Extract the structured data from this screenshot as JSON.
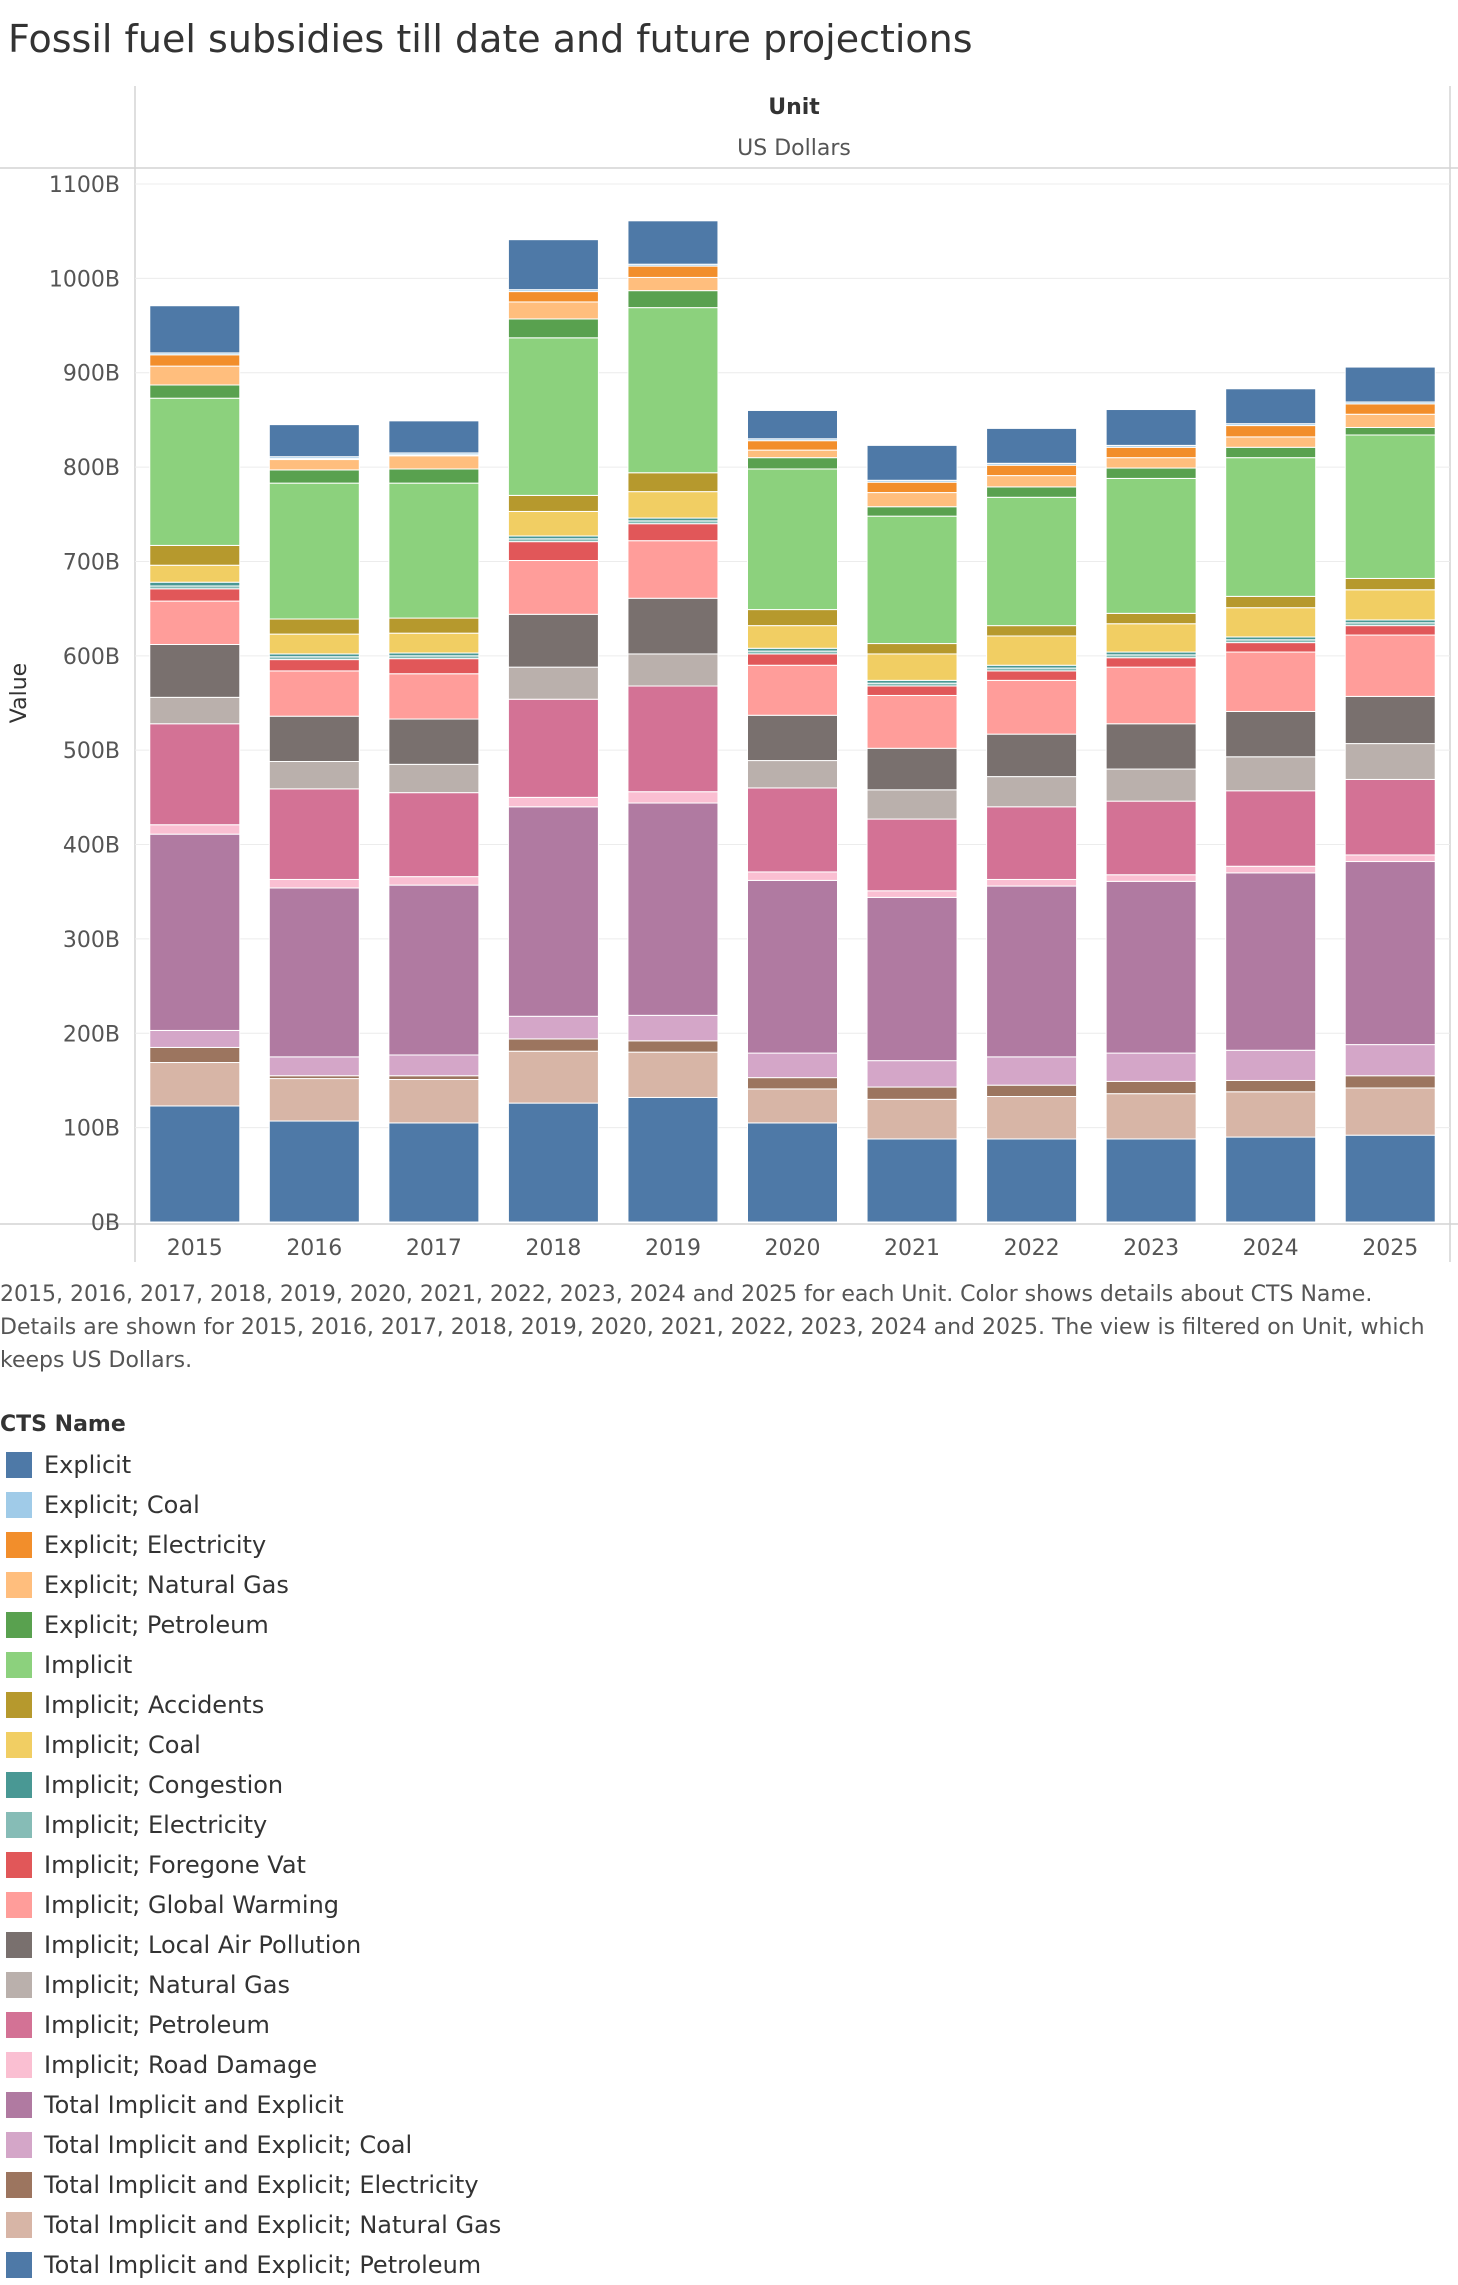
{
  "page": {
    "title": "Fossil fuel subsidies till date and future projections"
  },
  "header": {
    "column_label": "Unit",
    "column_value": "US Dollars"
  },
  "caption": "2015, 2016, 2017, 2018, 2019, 2020, 2021, 2022, 2023, 2024 and 2025 for each Unit.  Color shows details about CTS Name. Details are shown for 2015, 2016, 2017, 2018, 2019, 2020, 2021, 2022, 2023, 2024 and 2025. The view is filtered on Unit, which keeps US Dollars.",
  "legend": {
    "title": "CTS Name"
  },
  "chart_data": {
    "type": "bar",
    "stacked": true,
    "title": "Fossil fuel subsidies till date and future projections",
    "ylabel": "Value",
    "xlabel": "",
    "ylim": [
      0,
      1100
    ],
    "y_ticks": [
      0,
      100,
      200,
      300,
      400,
      500,
      600,
      700,
      800,
      900,
      1000,
      1100
    ],
    "y_tick_labels": [
      "0B",
      "100B",
      "200B",
      "300B",
      "400B",
      "500B",
      "600B",
      "700B",
      "800B",
      "900B",
      "1000B",
      "1100B"
    ],
    "y_unit": "B (US Dollars)",
    "grid": true,
    "legend_position": "bottom",
    "categories": [
      "2015",
      "2016",
      "2017",
      "2018",
      "2019",
      "2020",
      "2021",
      "2022",
      "2023",
      "2024",
      "2025"
    ],
    "series": [
      {
        "name": "Total Implicit and Explicit; Petroleum",
        "color": "#4e79a7",
        "values": [
          123,
          107,
          105,
          126,
          132,
          105,
          88,
          88,
          88,
          90,
          92
        ]
      },
      {
        "name": "Total Implicit and Explicit; Natural Gas",
        "color": "#d7b5a6",
        "values": [
          46,
          45,
          46,
          55,
          48,
          36,
          42,
          45,
          48,
          48,
          50
        ]
      },
      {
        "name": "Total Implicit and Explicit; Electricity",
        "color": "#9c755f",
        "values": [
          16,
          3,
          4,
          13,
          12,
          12,
          13,
          12,
          13,
          12,
          13
        ]
      },
      {
        "name": "Total Implicit and Explicit; Coal",
        "color": "#d4a6c8",
        "values": [
          18,
          20,
          22,
          24,
          27,
          26,
          28,
          30,
          30,
          32,
          33
        ]
      },
      {
        "name": "Total Implicit and Explicit",
        "color": "#b07aa1",
        "values": [
          208,
          179,
          180,
          222,
          225,
          183,
          173,
          181,
          182,
          188,
          194
        ]
      },
      {
        "name": "Implicit; Road Damage",
        "color": "#fabfd2",
        "values": [
          10,
          9,
          9,
          10,
          12,
          9,
          7,
          7,
          7,
          7,
          7
        ]
      },
      {
        "name": "Implicit; Petroleum",
        "color": "#d37295",
        "values": [
          107,
          96,
          89,
          104,
          112,
          89,
          76,
          77,
          78,
          80,
          80
        ]
      },
      {
        "name": "Implicit; Natural Gas",
        "color": "#bab0ac",
        "values": [
          28,
          29,
          30,
          34,
          34,
          29,
          31,
          32,
          34,
          36,
          38
        ]
      },
      {
        "name": "Implicit; Local Air Pollution",
        "color": "#79706e",
        "values": [
          56,
          48,
          48,
          56,
          59,
          48,
          44,
          45,
          48,
          48,
          50
        ]
      },
      {
        "name": "Implicit; Global Warming",
        "color": "#ff9d9a",
        "values": [
          46,
          48,
          48,
          57,
          61,
          53,
          56,
          57,
          60,
          63,
          65
        ]
      },
      {
        "name": "Implicit; Foregone Vat",
        "color": "#e15759",
        "values": [
          13,
          12,
          16,
          20,
          18,
          12,
          10,
          10,
          10,
          10,
          10
        ]
      },
      {
        "name": "Implicit; Electricity",
        "color": "#86bcb6",
        "values": [
          3,
          3,
          3,
          3,
          3,
          3,
          3,
          3,
          3,
          3,
          3
        ]
      },
      {
        "name": "Implicit; Congestion",
        "color": "#499894",
        "values": [
          4,
          3,
          3,
          3,
          3,
          3,
          3,
          3,
          3,
          3,
          3
        ]
      },
      {
        "name": "Implicit; Coal",
        "color": "#f1ce63",
        "values": [
          18,
          21,
          21,
          26,
          28,
          24,
          28,
          31,
          30,
          31,
          32
        ]
      },
      {
        "name": "Implicit; Accidents",
        "color": "#b6992d",
        "values": [
          21,
          16,
          16,
          17,
          20,
          17,
          11,
          11,
          11,
          12,
          12
        ]
      },
      {
        "name": "Implicit",
        "color": "#8cd17d",
        "values": [
          156,
          144,
          143,
          167,
          175,
          149,
          135,
          136,
          143,
          147,
          152
        ]
      },
      {
        "name": "Explicit; Petroleum",
        "color": "#59a14f",
        "values": [
          14,
          14,
          15,
          20,
          18,
          12,
          10,
          11,
          11,
          11,
          8
        ]
      },
      {
        "name": "Explicit; Natural Gas",
        "color": "#ffbe7d",
        "values": [
          20,
          11,
          14,
          18,
          14,
          8,
          15,
          12,
          11,
          11,
          14
        ]
      },
      {
        "name": "Explicit; Electricity",
        "color": "#f28e2b",
        "values": [
          12,
          1,
          1,
          11,
          12,
          10,
          11,
          11,
          11,
          12,
          11
        ]
      },
      {
        "name": "Explicit; Coal",
        "color": "#a0cbe8",
        "values": [
          2,
          2,
          2,
          2,
          2,
          2,
          2,
          2,
          2,
          2,
          2
        ]
      },
      {
        "name": "Explicit",
        "color": "#4e79a7",
        "values": [
          50,
          34,
          34,
          53,
          46,
          30,
          37,
          37,
          38,
          37,
          37
        ]
      }
    ],
    "legend_order": [
      "Explicit",
      "Explicit; Coal",
      "Explicit; Electricity",
      "Explicit; Natural Gas",
      "Explicit; Petroleum",
      "Implicit",
      "Implicit; Accidents",
      "Implicit; Coal",
      "Implicit; Congestion",
      "Implicit; Electricity",
      "Implicit; Foregone Vat",
      "Implicit; Global Warming",
      "Implicit; Local Air Pollution",
      "Implicit; Natural Gas",
      "Implicit; Petroleum",
      "Implicit; Road Damage",
      "Total Implicit and Explicit",
      "Total Implicit and Explicit; Coal",
      "Total Implicit and Explicit; Electricity",
      "Total Implicit and Explicit; Natural Gas",
      "Total Implicit and Explicit; Petroleum"
    ]
  }
}
